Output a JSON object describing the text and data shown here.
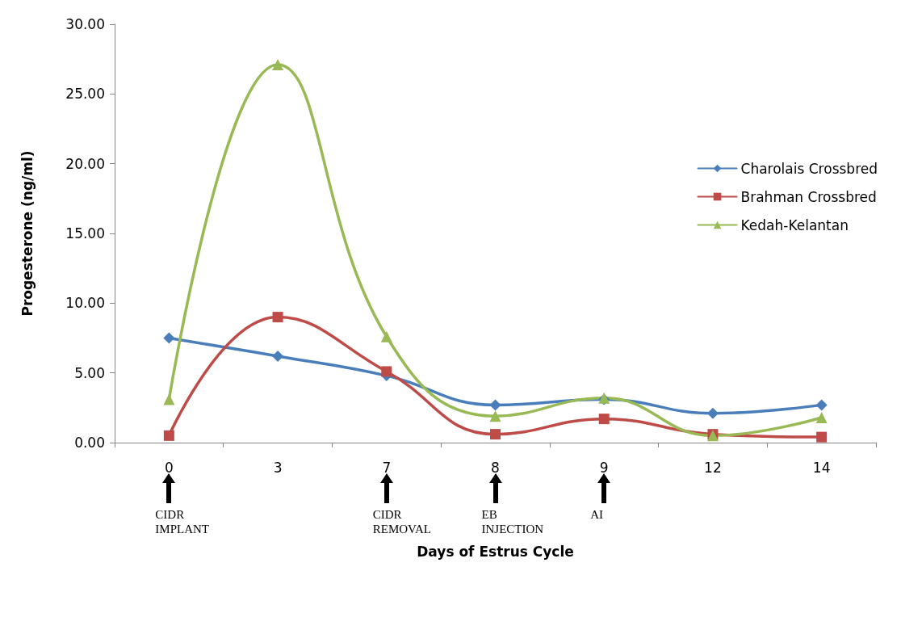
{
  "chart_data": {
    "type": "line",
    "xlabel": "Days of Estrus Cycle",
    "ylabel": "Progesterone (ng/ml)",
    "categories": [
      "0",
      "3",
      "7",
      "8",
      "9",
      "12",
      "14"
    ],
    "series": [
      {
        "name": "Charolais Crossbred",
        "color": "#4a7ebb",
        "marker": "diamond",
        "values": [
          7.5,
          6.2,
          4.8,
          2.7,
          3.1,
          2.1,
          2.7
        ]
      },
      {
        "name": "Brahman Crossbred",
        "color": "#be4b48",
        "marker": "square",
        "values": [
          0.5,
          9.0,
          5.1,
          0.6,
          1.7,
          0.6,
          0.4
        ]
      },
      {
        "name": "Kedah-Kelantan",
        "color": "#98b954",
        "marker": "triangle",
        "values": [
          3.1,
          27.1,
          7.6,
          1.9,
          3.2,
          0.5,
          1.8
        ]
      }
    ],
    "ylim": [
      0,
      30
    ],
    "yticks": [
      {
        "value": 0,
        "label": "0.00"
      },
      {
        "value": 5,
        "label": "5.00"
      },
      {
        "value": 10,
        "label": "10.00"
      },
      {
        "value": 15,
        "label": "15.00"
      },
      {
        "value": 20,
        "label": "20.00"
      },
      {
        "value": 25,
        "label": "25.00"
      },
      {
        "value": 30,
        "label": "30.00"
      }
    ],
    "grid": false,
    "legend": "right",
    "line_style": "solid",
    "annotations": [
      "CIDR\nIMPLANT",
      "CIDR\nREMOVAL",
      "EB\nINJECTION",
      "AI"
    ]
  }
}
